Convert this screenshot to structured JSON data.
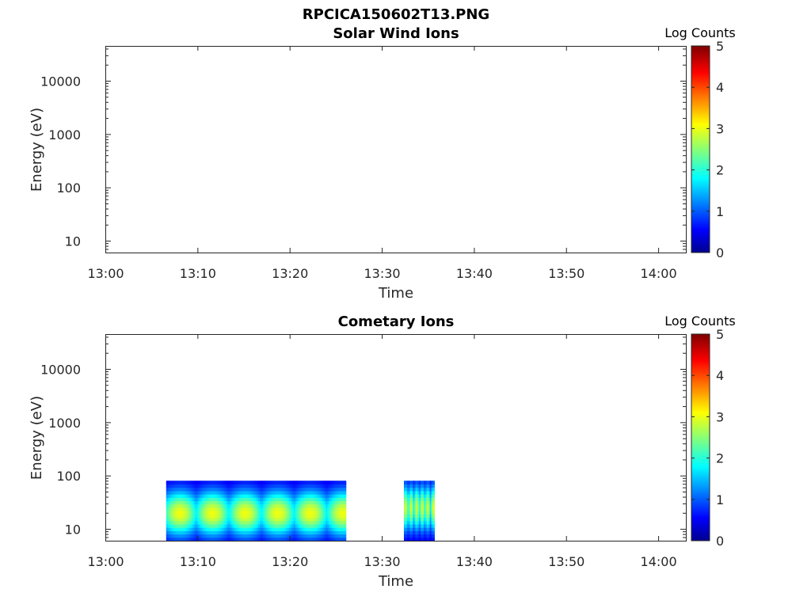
{
  "figure_title": "RPCICA150602T13.PNG",
  "chart_data": [
    {
      "type": "heatmap",
      "title": "Solar Wind Ions",
      "xlabel": "Time",
      "ylabel": "Energy (eV)",
      "x_ticks": [
        "13:00",
        "13:10",
        "13:20",
        "13:30",
        "13:40",
        "13:50",
        "14:00"
      ],
      "x_range_minutes": [
        0,
        63
      ],
      "y_scale": "log",
      "y_ticks": [
        10,
        100,
        1000,
        10000
      ],
      "y_range": [
        6,
        45000
      ],
      "colorbar": {
        "label": "Log Counts",
        "ticks": [
          0,
          1,
          2,
          3,
          4,
          5
        ],
        "range": [
          0,
          5
        ],
        "colormap": "jet"
      },
      "segments": []
    },
    {
      "type": "heatmap",
      "title": "Cometary Ions",
      "xlabel": "Time",
      "ylabel": "Energy (eV)",
      "x_ticks": [
        "13:00",
        "13:10",
        "13:20",
        "13:30",
        "13:40",
        "13:50",
        "14:00"
      ],
      "x_range_minutes": [
        0,
        63
      ],
      "y_scale": "log",
      "y_ticks": [
        10,
        100,
        1000,
        10000
      ],
      "y_range": [
        6,
        45000
      ],
      "colorbar": {
        "label": "Log Counts",
        "ticks": [
          0,
          1,
          2,
          3,
          4,
          5
        ],
        "range": [
          0,
          5
        ],
        "colormap": "jet"
      },
      "segments": [
        {
          "start_min": 6.6,
          "end_min": 26.1,
          "energy_min_eV": 6,
          "energy_max_eV": 80,
          "peak_energy_eV": 20,
          "peak_log_counts": 2.7
        },
        {
          "start_min": 32.4,
          "end_min": 35.7,
          "energy_min_eV": 6,
          "energy_max_eV": 80,
          "peak_energy_eV": 25,
          "peak_log_counts": 2.6
        }
      ]
    }
  ]
}
